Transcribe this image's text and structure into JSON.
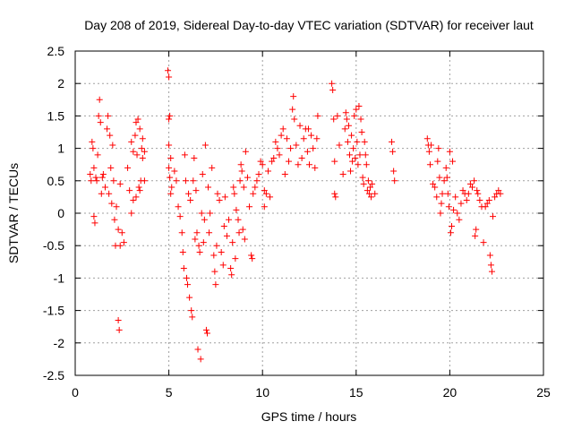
{
  "chart_data": {
    "type": "scatter",
    "title": "Day 208 of 2019, Sidereal Day-to-day VTEC variation (SDTVAR) for receiver laut",
    "xlabel": "GPS time / hours",
    "ylabel": "SDTVAR / TECUs",
    "xlim": [
      0,
      25
    ],
    "ylim": [
      -2.5,
      2.5
    ],
    "xticks": [
      0,
      5,
      10,
      15,
      20,
      25
    ],
    "xtick_labels": [
      "0",
      "5",
      "10",
      "15",
      "20",
      "25"
    ],
    "yticks": [
      -2.5,
      -2,
      -1.5,
      -1,
      -0.5,
      0,
      0.5,
      1,
      1.5,
      2,
      2.5
    ],
    "ytick_labels": [
      "-2.5",
      "-2",
      "-1.5",
      "-1",
      "-0.5",
      "0",
      "0.5",
      "1",
      "1.5",
      "2",
      "2.5"
    ],
    "grid": true,
    "marker": "+",
    "color": "#ff0000",
    "series": [
      {
        "name": "SDTVAR",
        "points": [
          [
            0.8,
            0.6
          ],
          [
            0.85,
            0.5
          ],
          [
            0.9,
            1.1
          ],
          [
            0.95,
            1.0
          ],
          [
            1.0,
            0.7
          ],
          [
            1.0,
            -0.05
          ],
          [
            1.05,
            -0.15
          ],
          [
            1.1,
            0.55
          ],
          [
            1.15,
            0.5
          ],
          [
            1.2,
            0.9
          ],
          [
            1.25,
            1.5
          ],
          [
            1.3,
            1.75
          ],
          [
            1.35,
            1.4
          ],
          [
            1.4,
            0.3
          ],
          [
            1.45,
            0.55
          ],
          [
            1.5,
            0.6
          ],
          [
            1.6,
            0.4
          ],
          [
            1.7,
            1.3
          ],
          [
            1.75,
            1.5
          ],
          [
            1.8,
            0.3
          ],
          [
            1.85,
            1.2
          ],
          [
            1.9,
            0.7
          ],
          [
            1.95,
            0.15
          ],
          [
            2.0,
            1.05
          ],
          [
            2.05,
            0.5
          ],
          [
            2.1,
            -0.1
          ],
          [
            2.15,
            -0.5
          ],
          [
            2.2,
            0.1
          ],
          [
            2.3,
            -0.25
          ],
          [
            2.3,
            -1.65
          ],
          [
            2.35,
            -1.8
          ],
          [
            2.4,
            -0.5
          ],
          [
            2.4,
            0.45
          ],
          [
            2.5,
            -0.3
          ],
          [
            2.6,
            -0.45
          ],
          [
            2.8,
            0.7
          ],
          [
            2.9,
            0.35
          ],
          [
            3.0,
            1.1
          ],
          [
            3.0,
            0.0
          ],
          [
            3.1,
            0.2
          ],
          [
            3.1,
            0.95
          ],
          [
            3.2,
            1.2
          ],
          [
            3.25,
            1.4
          ],
          [
            3.3,
            0.9
          ],
          [
            3.35,
            1.45
          ],
          [
            3.4,
            0.4
          ],
          [
            3.45,
            1.3
          ],
          [
            3.5,
            0.5
          ],
          [
            3.55,
            1.0
          ],
          [
            3.6,
            1.15
          ],
          [
            3.7,
            0.5
          ],
          [
            3.7,
            0.95
          ],
          [
            3.45,
            0.35
          ],
          [
            3.25,
            0.25
          ],
          [
            3.6,
            0.85
          ],
          [
            4.95,
            2.2
          ],
          [
            5.0,
            2.1
          ],
          [
            5.05,
            1.5
          ],
          [
            5.0,
            1.45
          ],
          [
            5.0,
            0.7
          ],
          [
            5.05,
            0.55
          ],
          [
            5.1,
            0.3
          ],
          [
            5.0,
            1.05
          ],
          [
            5.1,
            0.85
          ],
          [
            5.15,
            0.4
          ],
          [
            5.3,
            0.65
          ],
          [
            5.4,
            0.5
          ],
          [
            5.5,
            0.1
          ],
          [
            5.6,
            -0.05
          ],
          [
            5.7,
            -0.3
          ],
          [
            5.75,
            -0.6
          ],
          [
            5.8,
            -0.85
          ],
          [
            5.85,
            0.9
          ],
          [
            5.9,
            0.5
          ],
          [
            5.95,
            -1.0
          ],
          [
            6.0,
            -1.1
          ],
          [
            6.05,
            0.3
          ],
          [
            6.1,
            -1.3
          ],
          [
            6.15,
            0.2
          ],
          [
            6.2,
            -1.5
          ],
          [
            6.25,
            -1.6
          ],
          [
            6.3,
            0.5
          ],
          [
            6.35,
            0.85
          ],
          [
            6.4,
            -0.4
          ],
          [
            6.45,
            0.35
          ],
          [
            6.5,
            -0.3
          ],
          [
            6.55,
            -2.1
          ],
          [
            6.6,
            -0.5
          ],
          [
            6.65,
            -0.6
          ],
          [
            6.7,
            -2.25
          ],
          [
            6.75,
            0.0
          ],
          [
            6.8,
            0.6
          ],
          [
            6.85,
            -0.45
          ],
          [
            6.9,
            -0.1
          ],
          [
            6.95,
            1.05
          ],
          [
            7.0,
            -1.8
          ],
          [
            7.05,
            -1.85
          ],
          [
            7.1,
            0.4
          ],
          [
            7.15,
            -0.3
          ],
          [
            7.2,
            0.0
          ],
          [
            7.3,
            0.7
          ],
          [
            7.4,
            -0.65
          ],
          [
            7.45,
            -0.9
          ],
          [
            7.5,
            -1.1
          ],
          [
            7.55,
            -0.5
          ],
          [
            7.6,
            0.3
          ],
          [
            7.7,
            0.2
          ],
          [
            7.8,
            -0.6
          ],
          [
            7.9,
            -0.8
          ],
          [
            7.95,
            -0.2
          ],
          [
            8.0,
            0.25
          ],
          [
            8.1,
            -0.35
          ],
          [
            8.2,
            -0.1
          ],
          [
            8.3,
            -0.85
          ],
          [
            8.35,
            -0.95
          ],
          [
            8.4,
            -0.45
          ],
          [
            8.45,
            0.4
          ],
          [
            8.5,
            0.3
          ],
          [
            8.55,
            -0.7
          ],
          [
            8.6,
            0.05
          ],
          [
            8.7,
            -0.1
          ],
          [
            8.8,
            0.5
          ],
          [
            8.85,
            0.75
          ],
          [
            8.9,
            0.65
          ],
          [
            9.0,
            0.4
          ],
          [
            8.75,
            -0.3
          ],
          [
            8.95,
            -0.25
          ],
          [
            9.05,
            -0.4
          ],
          [
            9.1,
            0.95
          ],
          [
            9.2,
            0.55
          ],
          [
            9.3,
            0.1
          ],
          [
            9.4,
            -0.65
          ],
          [
            9.45,
            -0.7
          ],
          [
            9.5,
            0.3
          ],
          [
            9.6,
            0.4
          ],
          [
            9.7,
            0.5
          ],
          [
            9.8,
            0.6
          ],
          [
            9.9,
            0.8
          ],
          [
            10.0,
            0.75
          ],
          [
            10.1,
            0.1
          ],
          [
            10.1,
            0.35
          ],
          [
            10.2,
            0.3
          ],
          [
            10.3,
            0.65
          ],
          [
            10.4,
            0.25
          ],
          [
            10.5,
            0.8
          ],
          [
            10.6,
            0.85
          ],
          [
            10.7,
            1.1
          ],
          [
            10.8,
            1.0
          ],
          [
            10.9,
            0.9
          ],
          [
            11.0,
            1.2
          ],
          [
            11.1,
            1.3
          ],
          [
            11.2,
            0.6
          ],
          [
            11.3,
            1.15
          ],
          [
            11.4,
            0.8
          ],
          [
            11.5,
            1.0
          ],
          [
            11.6,
            1.6
          ],
          [
            11.7,
            1.45
          ],
          [
            11.8,
            1.05
          ],
          [
            11.9,
            0.75
          ],
          [
            12.0,
            1.35
          ],
          [
            12.1,
            0.85
          ],
          [
            12.2,
            1.15
          ],
          [
            12.3,
            1.3
          ],
          [
            12.4,
            0.95
          ],
          [
            12.5,
            0.75
          ],
          [
            12.6,
            1.2
          ],
          [
            12.7,
            1.0
          ],
          [
            12.8,
            0.7
          ],
          [
            12.9,
            1.15
          ],
          [
            11.65,
            1.8
          ],
          [
            12.45,
            1.3
          ],
          [
            12.95,
            1.5
          ],
          [
            13.7,
            2.0
          ],
          [
            13.75,
            1.9
          ],
          [
            13.8,
            1.45
          ],
          [
            13.85,
            0.8
          ],
          [
            13.85,
            0.3
          ],
          [
            13.9,
            0.25
          ],
          [
            14.0,
            1.5
          ],
          [
            14.1,
            1.05
          ],
          [
            14.3,
            0.6
          ],
          [
            14.4,
            1.3
          ],
          [
            14.45,
            1.55
          ],
          [
            14.5,
            1.45
          ],
          [
            14.55,
            1.1
          ],
          [
            14.6,
            1.35
          ],
          [
            14.65,
            0.9
          ],
          [
            14.7,
            0.65
          ],
          [
            14.75,
            1.2
          ],
          [
            14.8,
            0.8
          ],
          [
            14.85,
            1.0
          ],
          [
            14.9,
            1.5
          ],
          [
            14.95,
            0.85
          ],
          [
            15.0,
            1.6
          ],
          [
            15.05,
            1.1
          ],
          [
            15.1,
            0.75
          ],
          [
            15.15,
            1.65
          ],
          [
            15.2,
            0.9
          ],
          [
            15.25,
            1.45
          ],
          [
            15.3,
            1.25
          ],
          [
            15.35,
            0.55
          ],
          [
            15.4,
            0.45
          ],
          [
            15.45,
            1.1
          ],
          [
            15.5,
            0.9
          ],
          [
            15.55,
            0.75
          ],
          [
            15.6,
            0.35
          ],
          [
            15.65,
            0.5
          ],
          [
            15.7,
            0.3
          ],
          [
            15.75,
            0.4
          ],
          [
            15.8,
            0.25
          ],
          [
            15.85,
            0.45
          ],
          [
            16.0,
            0.3
          ],
          [
            16.9,
            1.1
          ],
          [
            16.95,
            0.95
          ],
          [
            17.0,
            0.65
          ],
          [
            17.05,
            0.5
          ],
          [
            18.8,
            1.15
          ],
          [
            18.85,
            1.05
          ],
          [
            18.9,
            0.95
          ],
          [
            18.95,
            0.75
          ],
          [
            19.0,
            1.05
          ],
          [
            19.1,
            0.45
          ],
          [
            19.2,
            0.4
          ],
          [
            19.3,
            0.25
          ],
          [
            19.35,
            0.8
          ],
          [
            19.4,
            1.0
          ],
          [
            19.45,
            0.55
          ],
          [
            19.5,
            0.0
          ],
          [
            19.55,
            0.15
          ],
          [
            19.6,
            0.3
          ],
          [
            19.7,
            0.5
          ],
          [
            19.8,
            0.7
          ],
          [
            19.85,
            0.55
          ],
          [
            19.9,
            0.3
          ],
          [
            19.95,
            0.1
          ],
          [
            20.0,
            0.95
          ],
          [
            20.05,
            -0.3
          ],
          [
            20.1,
            -0.2
          ],
          [
            20.15,
            0.8
          ],
          [
            20.2,
            0.05
          ],
          [
            20.3,
            0.25
          ],
          [
            20.4,
            0.0
          ],
          [
            20.5,
            -0.1
          ],
          [
            20.6,
            0.15
          ],
          [
            20.7,
            0.35
          ],
          [
            20.8,
            0.3
          ],
          [
            20.9,
            0.2
          ],
          [
            21.0,
            0.3
          ],
          [
            21.1,
            0.45
          ],
          [
            21.2,
            0.4
          ],
          [
            21.3,
            0.5
          ],
          [
            21.35,
            -0.35
          ],
          [
            21.4,
            -0.25
          ],
          [
            21.45,
            0.35
          ],
          [
            21.5,
            0.3
          ],
          [
            21.6,
            0.2
          ],
          [
            21.7,
            0.1
          ],
          [
            21.8,
            -0.45
          ],
          [
            21.9,
            0.1
          ],
          [
            22.0,
            0.15
          ],
          [
            22.1,
            0.2
          ],
          [
            22.15,
            -0.65
          ],
          [
            22.2,
            -0.8
          ],
          [
            22.25,
            -0.9
          ],
          [
            22.3,
            -0.05
          ],
          [
            22.4,
            0.25
          ],
          [
            22.5,
            0.3
          ],
          [
            22.6,
            0.35
          ],
          [
            22.7,
            0.3
          ]
        ]
      }
    ]
  }
}
